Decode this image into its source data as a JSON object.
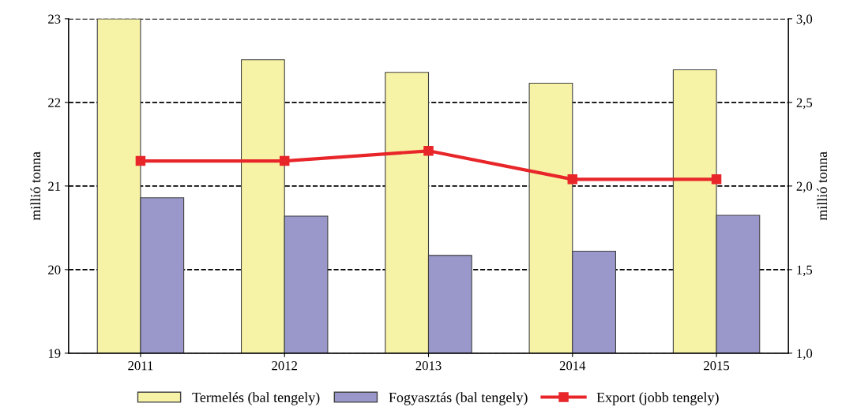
{
  "chart_data": {
    "type": "bar",
    "ylabel": "millió tonna",
    "y2label": "millió tonna",
    "categories": [
      "2011",
      "2012",
      "2013",
      "2014",
      "2015"
    ],
    "series": [
      {
        "name": "Termelés (bal tengely)",
        "color": "#f7f3a6",
        "values": [
          23.0,
          22.51,
          22.36,
          22.23,
          22.39
        ]
      },
      {
        "name": "Fogyasztás (bal tengely)",
        "color": "#9a98cb",
        "values": [
          20.86,
          20.64,
          20.17,
          20.22,
          20.65
        ]
      },
      {
        "name": "Export (jobb tengely)",
        "type": "line",
        "axis": "y2",
        "color": "#e8262a",
        "marker": "square",
        "values": [
          2.15,
          2.15,
          2.21,
          2.04,
          2.04
        ]
      }
    ],
    "ylim": [
      19,
      23
    ],
    "yticks": [
      19,
      20,
      21,
      22,
      23
    ],
    "y2lim": [
      1.0,
      3.0
    ],
    "y2ticks": [
      {
        "value": 1.0,
        "label": "1,0"
      },
      {
        "value": 1.5,
        "label": "1,5"
      },
      {
        "value": 2.0,
        "label": "2,0"
      },
      {
        "value": 2.5,
        "label": "2,5"
      },
      {
        "value": 3.0,
        "label": "3,0"
      }
    ],
    "grid": "y",
    "legend": "bottom"
  }
}
